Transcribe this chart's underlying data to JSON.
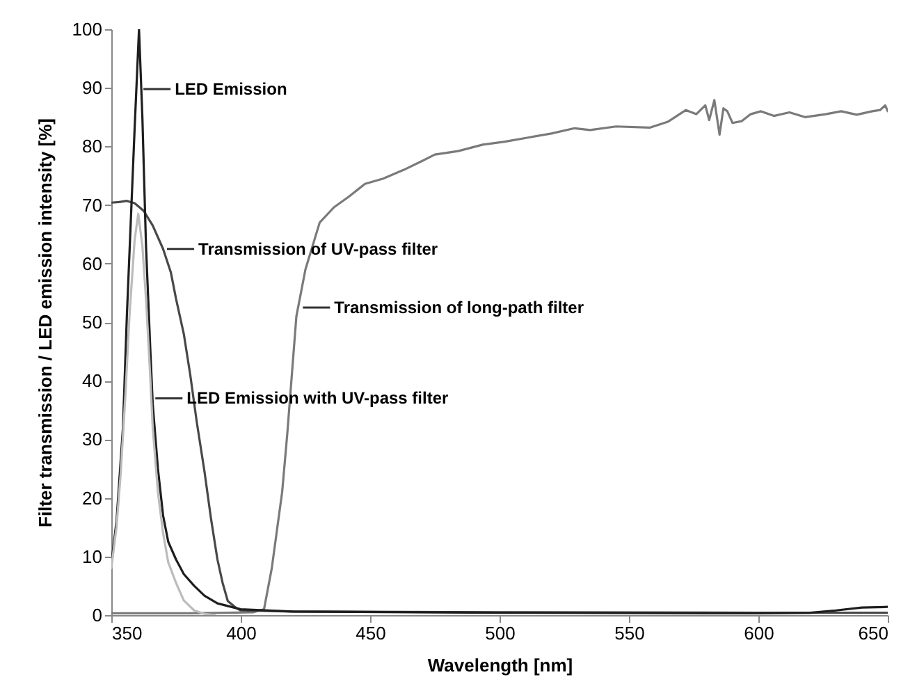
{
  "chart_data": {
    "type": "line",
    "xlabel": "Wavelength [nm]",
    "ylabel": "Filter transmission / LED emission intensity [%]",
    "xlim": [
      350,
      650
    ],
    "ylim": [
      0,
      100
    ],
    "xticks": [
      350,
      400,
      450,
      500,
      550,
      600,
      650
    ],
    "yticks": [
      0,
      10,
      20,
      30,
      40,
      50,
      60,
      70,
      80,
      90,
      100
    ],
    "marker": "none",
    "line_style": "solid",
    "series": [
      {
        "color": "#7a7a7a",
        "x": [
          350,
          360,
          380,
          395,
          405,
          409,
          412,
          416,
          418,
          421.5,
          425,
          430.5,
          436,
          442,
          448,
          455,
          463,
          470,
          475,
          484,
          493.5,
          502,
          511,
          520,
          529,
          535,
          545,
          558,
          565,
          572,
          576,
          579.5,
          581,
          583,
          585,
          586.5,
          588,
          590,
          593.5,
          597,
          601,
          606,
          612,
          618,
          626,
          632,
          638,
          644,
          647,
          649,
          650
        ],
        "values": [
          0.3,
          0.3,
          0.3,
          0.4,
          0.5,
          1,
          8,
          21,
          31,
          51,
          59,
          67,
          69.6,
          71.5,
          73.6,
          74.5,
          76,
          77.5,
          78.6,
          79.2,
          80.3,
          80.8,
          81.5,
          82.2,
          83.1,
          82.8,
          83.4,
          83.2,
          84.2,
          86.2,
          85.5,
          87,
          84.5,
          87.9,
          82,
          86.5,
          86,
          84,
          84.3,
          85.5,
          86,
          85.2,
          85.8,
          85,
          85.5,
          86,
          85.4,
          86,
          86.2,
          87,
          86
        ]
      },
      {
        "color": "#484848",
        "x": [
          350,
          353,
          356,
          359,
          362.5,
          366,
          370,
          373,
          375,
          378,
          380.5,
          383,
          386,
          388.5,
          391,
          393,
          395,
          398,
          400,
          420,
          500,
          600,
          650
        ],
        "values": [
          70.4,
          70.5,
          70.7,
          70.3,
          69,
          66.5,
          62.5,
          58.5,
          54,
          48,
          41,
          33,
          24.5,
          16.5,
          9.5,
          5.5,
          2.4,
          1.3,
          0.8,
          0.6,
          0.5,
          0.4,
          0.4
        ]
      },
      {
        "color": "#1e1e1e",
        "x": [
          350,
          352,
          354.5,
          356,
          359,
          360.7,
          362,
          363.4,
          365,
          366,
          368,
          370,
          372,
          375,
          378,
          382,
          386,
          391,
          400,
          420,
          500,
          600,
          620,
          630,
          640,
          650
        ],
        "values": [
          8.7,
          16,
          32,
          51,
          83,
          100,
          85,
          63,
          46,
          36,
          25,
          17,
          12.5,
          9.5,
          7,
          5,
          3.3,
          2,
          1,
          0.6,
          0.4,
          0.3,
          0.4,
          0.8,
          1.3,
          1.4
        ]
      },
      {
        "color": "#bcbcbc",
        "x": [
          350,
          352,
          353.6,
          355.5,
          357,
          359,
          360.4,
          362,
          363.4,
          365,
          366,
          368,
          370,
          372,
          375,
          378,
          382,
          386,
          390
        ],
        "values": [
          8,
          15,
          24,
          38,
          51,
          64,
          68.5,
          63,
          54,
          41,
          32,
          21,
          14,
          9,
          5.5,
          2.5,
          0.8,
          0.2,
          0
        ]
      }
    ],
    "annotations": [
      {
        "text": "LED Emission",
        "x": 362.4,
        "y": 89.8
      },
      {
        "text": "Transmission of UV-pass filter",
        "x": 371.5,
        "y": 62.5
      },
      {
        "text": "Transmission of long-path filter",
        "x": 424,
        "y": 52.5
      },
      {
        "text": "LED Emission with UV-pass filter",
        "x": 367,
        "y": 37
      }
    ]
  }
}
